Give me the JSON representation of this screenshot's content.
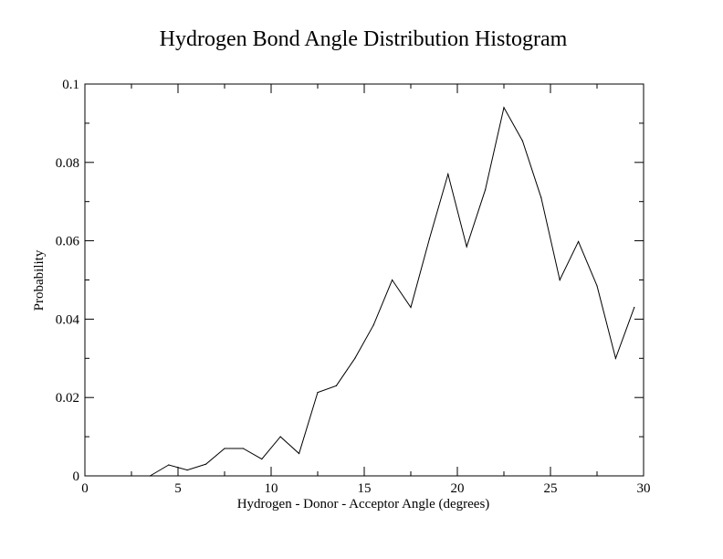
{
  "chart_data": {
    "type": "line",
    "title": "Hydrogen Bond Angle Distribution Histogram",
    "xlabel": "Hydrogen - Donor - Acceptor Angle (degrees)",
    "ylabel": "Probability",
    "xlim": [
      0,
      30
    ],
    "ylim": [
      0,
      0.1
    ],
    "x_ticks": [
      0,
      5,
      10,
      15,
      20,
      25,
      30
    ],
    "x_tick_labels": [
      "0",
      "5",
      "10",
      "15",
      "20",
      "25",
      "30"
    ],
    "y_ticks": [
      0,
      0.02,
      0.04,
      0.06,
      0.08,
      0.1
    ],
    "y_tick_labels": [
      "0",
      "0.02",
      "0.04",
      "0.06",
      "0.08",
      "0.1"
    ],
    "x_minor_ticks": [
      2.5,
      7.5,
      12.5,
      17.5,
      22.5,
      27.5
    ],
    "y_minor_ticks": [
      0.01,
      0.03,
      0.05,
      0.07,
      0.09
    ],
    "grid": false,
    "series": [
      {
        "color": "#000000",
        "x": [
          3.5,
          4.5,
          5.5,
          6.5,
          7.5,
          8.5,
          9.5,
          10.5,
          11.5,
          12.5,
          13.5,
          14.5,
          15.5,
          16.5,
          17.5,
          18.5,
          19.5,
          20.5,
          21.5,
          22.5,
          23.5,
          24.5,
          25.5,
          26.5,
          27.5,
          28.5,
          29.5
        ],
        "y": [
          0.0,
          0.0028,
          0.0015,
          0.003,
          0.007,
          0.007,
          0.0043,
          0.01,
          0.0057,
          0.0213,
          0.023,
          0.03,
          0.0385,
          0.05,
          0.043,
          0.0605,
          0.077,
          0.0585,
          0.073,
          0.094,
          0.0855,
          0.071,
          0.05,
          0.0598,
          0.0485,
          0.03,
          0.043
        ]
      }
    ]
  }
}
